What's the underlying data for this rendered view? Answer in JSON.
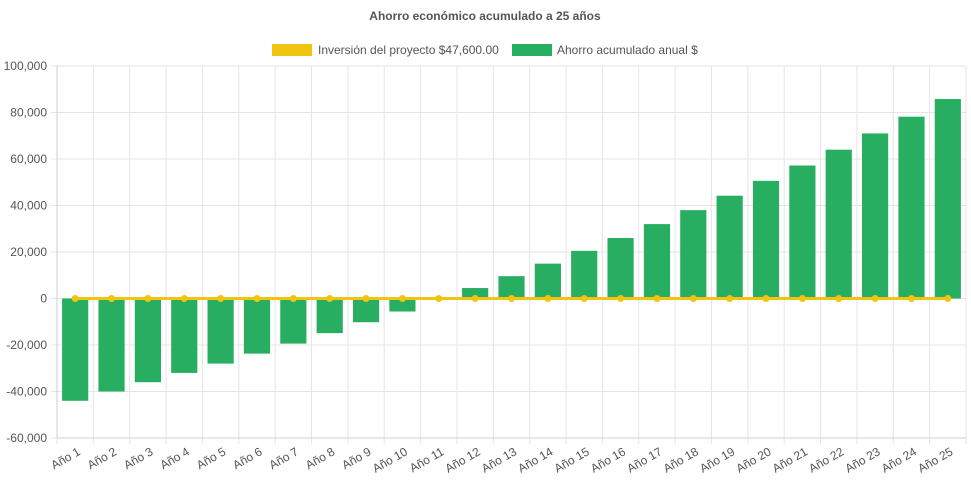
{
  "chart_data": {
    "type": "bar",
    "title": "Ahorro económico acumulado a 25 años",
    "categories": [
      "Año 1",
      "Año 2",
      "Año 3",
      "Año 4",
      "Año 5",
      "Año 6",
      "Año 7",
      "Año 8",
      "Año 9",
      "Año 10",
      "Año 11",
      "Año 12",
      "Año 13",
      "Año 14",
      "Año 15",
      "Año 16",
      "Año 17",
      "Año 18",
      "Año 19",
      "Año 20",
      "Año 21",
      "Año 22",
      "Año 23",
      "Año 24",
      "Año 25"
    ],
    "series": [
      {
        "name": "Inversión del proyecto $47,600.00",
        "type": "line",
        "color": "#f1c40f",
        "values": [
          0,
          0,
          0,
          0,
          0,
          0,
          0,
          0,
          0,
          0,
          0,
          0,
          0,
          0,
          0,
          0,
          0,
          0,
          0,
          0,
          0,
          0,
          0,
          0,
          0
        ]
      },
      {
        "name": "Ahorro acumulado anual $",
        "type": "bar",
        "color": "#27ae60",
        "values": [
          -44000,
          -40000,
          -36000,
          -32000,
          -28000,
          -23700,
          -19400,
          -14900,
          -10200,
          -5600,
          -500,
          4500,
          9600,
          15000,
          20500,
          26000,
          32000,
          38000,
          44200,
          50600,
          57200,
          64000,
          71000,
          78200,
          85800
        ]
      }
    ],
    "yticks": [
      "100,000",
      "80,000",
      "60,000",
      "40,000",
      "20,000",
      "0",
      "-20,000",
      "-40,000",
      "-60,000"
    ],
    "ylim": [
      -60000,
      100000
    ],
    "grid": true,
    "legend_position": "top-center"
  }
}
